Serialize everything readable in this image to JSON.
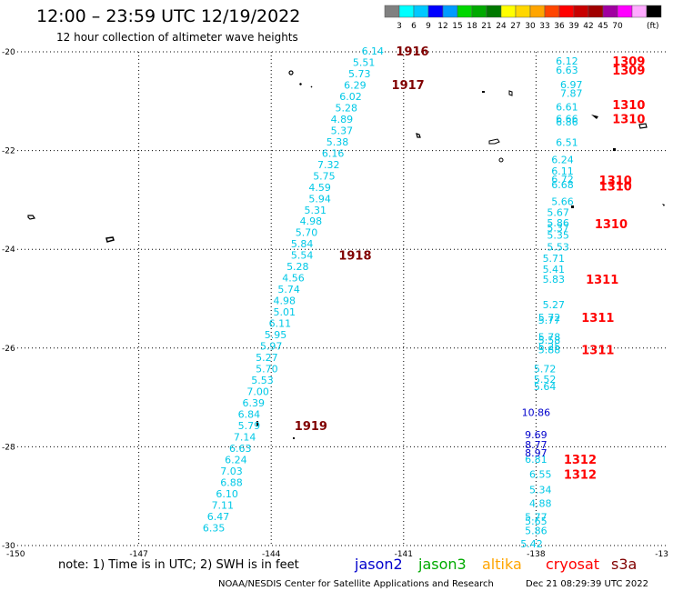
{
  "header": {
    "title": "12:00 – 23:59 UTC 12/19/2022",
    "subtitle": "12 hour collection of altimeter wave heights"
  },
  "colorbar": {
    "colors": [
      "#808080",
      "#00ffff",
      "#00c8ff",
      "#0000ff",
      "#009bff",
      "#00d700",
      "#00aa00",
      "#007800",
      "#ffff00",
      "#ffd700",
      "#ffa500",
      "#ff4500",
      "#ff0000",
      "#c80000",
      "#a00000",
      "#a000a0",
      "#ff00ff",
      "#ffaaff",
      "#000000"
    ],
    "ticks": [
      "3",
      "6",
      "9",
      "12",
      "15",
      "18",
      "21",
      "24",
      "27",
      "30",
      "33",
      "36",
      "39",
      "42",
      "45",
      "70"
    ],
    "unit": "(ft)"
  },
  "footer": {
    "note": "note:  1) Time is in UTC;  2) SWH is in feet",
    "legend": [
      {
        "label": "jason2",
        "color": "#0000cc"
      },
      {
        "label": "jason3",
        "color": "#00aa00"
      },
      {
        "label": "altika",
        "color": "#ffa500"
      },
      {
        "label": "cryosat",
        "color": "#ff0000"
      },
      {
        "label": "s3a",
        "color": "#800000"
      }
    ],
    "credit": "NOAA/NESDIS Center for Satellite Applications and Research",
    "timestamp": "Dec 21 08:29:39 UTC 2022"
  },
  "chart_data": {
    "type": "scatter",
    "xlim": [
      -150,
      -135
    ],
    "ylim": [
      -30,
      -20
    ],
    "x_ticks": [
      "-150",
      "-147",
      "-144",
      "-141",
      "-138",
      "-13"
    ],
    "y_ticks": [
      "-20",
      "-22",
      "-24",
      "-26",
      "-28",
      "-30"
    ],
    "grid": true,
    "series": [
      {
        "satellite": "s3a",
        "color": "#00c8e6",
        "points": [
          {
            "lon": -141.7,
            "lat": -19.98,
            "v": "6.14"
          },
          {
            "lon": -141.9,
            "lat": -20.21,
            "v": "5.51"
          },
          {
            "lon": -142.0,
            "lat": -20.44,
            "v": "5.73"
          },
          {
            "lon": -142.1,
            "lat": -20.67,
            "v": "6.29"
          },
          {
            "lon": -142.2,
            "lat": -20.9,
            "v": "6.02"
          },
          {
            "lon": -142.3,
            "lat": -21.13,
            "v": "5.28"
          },
          {
            "lon": -142.4,
            "lat": -21.36,
            "v": "4.89"
          },
          {
            "lon": -142.4,
            "lat": -21.59,
            "v": "5.37"
          },
          {
            "lon": -142.5,
            "lat": -21.82,
            "v": "5.38"
          },
          {
            "lon": -142.6,
            "lat": -22.05,
            "v": "6.16"
          },
          {
            "lon": -142.7,
            "lat": -22.28,
            "v": "7.32"
          },
          {
            "lon": -142.8,
            "lat": -22.51,
            "v": "5.75"
          },
          {
            "lon": -142.9,
            "lat": -22.74,
            "v": "4.59"
          },
          {
            "lon": -142.9,
            "lat": -22.97,
            "v": "5.94"
          },
          {
            "lon": -143.0,
            "lat": -23.2,
            "v": "5.31"
          },
          {
            "lon": -143.1,
            "lat": -23.43,
            "v": "4.98"
          },
          {
            "lon": -143.2,
            "lat": -23.66,
            "v": "5.70"
          },
          {
            "lon": -143.3,
            "lat": -23.89,
            "v": "5.84"
          },
          {
            "lon": -143.3,
            "lat": -24.12,
            "v": "5.54"
          },
          {
            "lon": -143.4,
            "lat": -24.35,
            "v": "5.28"
          },
          {
            "lon": -143.5,
            "lat": -24.58,
            "v": "4.56"
          },
          {
            "lon": -143.6,
            "lat": -24.81,
            "v": "5.74"
          },
          {
            "lon": -143.7,
            "lat": -25.04,
            "v": "4.98"
          },
          {
            "lon": -143.7,
            "lat": -25.27,
            "v": "5.01"
          },
          {
            "lon": -143.8,
            "lat": -25.5,
            "v": "6.11"
          },
          {
            "lon": -143.9,
            "lat": -25.73,
            "v": "5.95"
          },
          {
            "lon": -144.0,
            "lat": -25.96,
            "v": "5.97"
          },
          {
            "lon": -144.1,
            "lat": -26.19,
            "v": "5.27"
          },
          {
            "lon": -144.1,
            "lat": -26.42,
            "v": "5.70"
          },
          {
            "lon": -144.2,
            "lat": -26.65,
            "v": "5.53"
          },
          {
            "lon": -144.3,
            "lat": -26.88,
            "v": "7.00"
          },
          {
            "lon": -144.4,
            "lat": -27.11,
            "v": "6.39"
          },
          {
            "lon": -144.5,
            "lat": -27.34,
            "v": "6.84"
          },
          {
            "lon": -144.5,
            "lat": -27.57,
            "v": "5.79"
          },
          {
            "lon": -144.6,
            "lat": -27.8,
            "v": "7.14"
          },
          {
            "lon": -144.7,
            "lat": -28.03,
            "v": "6.63"
          },
          {
            "lon": -144.8,
            "lat": -28.26,
            "v": "6.24"
          },
          {
            "lon": -144.9,
            "lat": -28.49,
            "v": "7.03"
          },
          {
            "lon": -144.9,
            "lat": -28.72,
            "v": "6.88"
          },
          {
            "lon": -145.0,
            "lat": -28.95,
            "v": "6.10"
          },
          {
            "lon": -145.1,
            "lat": -29.18,
            "v": "7.11"
          },
          {
            "lon": -145.2,
            "lat": -29.41,
            "v": "6.47"
          },
          {
            "lon": -145.3,
            "lat": -29.64,
            "v": "6.35"
          }
        ]
      },
      {
        "satellite": "cryosat",
        "color": "#00c8e6",
        "points": [
          {
            "lon": -137.3,
            "lat": -20.18,
            "v": "6.12"
          },
          {
            "lon": -137.3,
            "lat": -20.37,
            "v": "6.63"
          },
          {
            "lon": -137.2,
            "lat": -20.66,
            "v": "6.97"
          },
          {
            "lon": -137.2,
            "lat": -20.84,
            "v": "7.87"
          },
          {
            "lon": -137.3,
            "lat": -21.11,
            "v": "6.61"
          },
          {
            "lon": -137.3,
            "lat": -21.35,
            "v": "6.66"
          },
          {
            "lon": -137.3,
            "lat": -21.42,
            "v": "6.86"
          },
          {
            "lon": -137.3,
            "lat": -21.83,
            "v": "6.51"
          },
          {
            "lon": -137.4,
            "lat": -22.18,
            "v": "6.24"
          },
          {
            "lon": -137.4,
            "lat": -22.41,
            "v": "6.11"
          },
          {
            "lon": -137.4,
            "lat": -22.58,
            "v": "6.72"
          },
          {
            "lon": -137.4,
            "lat": -22.69,
            "v": "6.68"
          },
          {
            "lon": -137.4,
            "lat": -23.03,
            "v": "5.66"
          },
          {
            "lon": -137.5,
            "lat": -23.25,
            "v": "5.67"
          },
          {
            "lon": -137.5,
            "lat": -23.46,
            "v": "5.86"
          },
          {
            "lon": -137.5,
            "lat": -23.56,
            "v": "5.37"
          },
          {
            "lon": -137.5,
            "lat": -23.71,
            "v": "5.35"
          },
          {
            "lon": -137.5,
            "lat": -23.95,
            "v": "5.53"
          },
          {
            "lon": -137.6,
            "lat": -24.18,
            "v": "5.71"
          },
          {
            "lon": -137.6,
            "lat": -24.4,
            "v": "5.41"
          },
          {
            "lon": -137.6,
            "lat": -24.6,
            "v": "5.83"
          },
          {
            "lon": -137.6,
            "lat": -25.12,
            "v": "5.27"
          },
          {
            "lon": -137.7,
            "lat": -25.38,
            "v": "5.72"
          },
          {
            "lon": -137.7,
            "lat": -25.43,
            "v": "5.77"
          },
          {
            "lon": -137.7,
            "lat": -25.77,
            "v": "5.78"
          },
          {
            "lon": -137.7,
            "lat": -25.84,
            "v": "5.58"
          },
          {
            "lon": -137.7,
            "lat": -25.97,
            "v": "5.25"
          },
          {
            "lon": -137.7,
            "lat": -26.03,
            "v": "5.88"
          },
          {
            "lon": -137.8,
            "lat": -26.42,
            "v": "5.72"
          },
          {
            "lon": -137.8,
            "lat": -26.63,
            "v": "5.52"
          },
          {
            "lon": -137.8,
            "lat": -26.78,
            "v": "5.64"
          },
          {
            "lon": -138.0,
            "lat": -28.25,
            "v": "6.81"
          },
          {
            "lon": -137.9,
            "lat": -28.55,
            "v": "6.55"
          },
          {
            "lon": -137.9,
            "lat": -28.87,
            "v": "5.34"
          },
          {
            "lon": -137.9,
            "lat": -29.14,
            "v": "4.88"
          },
          {
            "lon": -138.0,
            "lat": -29.42,
            "v": "5.77"
          },
          {
            "lon": -138.0,
            "lat": -29.5,
            "v": "5.65"
          },
          {
            "lon": -138.0,
            "lat": -29.7,
            "v": "5.86"
          },
          {
            "lon": -138.1,
            "lat": -29.96,
            "v": "5.42"
          }
        ]
      },
      {
        "satellite": "jason2",
        "color": "#0000cc",
        "points": [
          {
            "lon": -138.0,
            "lat": -27.3,
            "v": "10.86"
          },
          {
            "lon": -138.0,
            "lat": -27.75,
            "v": "9.69"
          },
          {
            "lon": -138.0,
            "lat": -27.96,
            "v": "8.77"
          },
          {
            "lon": -138.0,
            "lat": -28.12,
            "v": "8.97"
          }
        ]
      }
    ],
    "pass_labels": [
      {
        "text": "1916",
        "lon": -140.8,
        "lat": -19.98,
        "color": "#800000"
      },
      {
        "text": "1917",
        "lon": -140.9,
        "lat": -20.66,
        "color": "#800000"
      },
      {
        "text": "1918",
        "lon": -142.1,
        "lat": -24.12,
        "color": "#800000"
      },
      {
        "text": "1919",
        "lon": -143.1,
        "lat": -27.57,
        "color": "#800000"
      },
      {
        "text": "1309",
        "lon": -135.9,
        "lat": -20.18,
        "color": "#ff0000"
      },
      {
        "text": "1309",
        "lon": -135.9,
        "lat": -20.37,
        "color": "#ff0000"
      },
      {
        "text": "1310",
        "lon": -135.9,
        "lat": -21.07,
        "color": "#ff0000"
      },
      {
        "text": "1310",
        "lon": -135.9,
        "lat": -21.35,
        "color": "#ff0000"
      },
      {
        "text": "1310",
        "lon": -136.2,
        "lat": -22.6,
        "color": "#ff0000"
      },
      {
        "text": "1310",
        "lon": -136.2,
        "lat": -22.72,
        "color": "#ff0000"
      },
      {
        "text": "1310",
        "lon": -136.3,
        "lat": -23.48,
        "color": "#ff0000"
      },
      {
        "text": "1311",
        "lon": -136.5,
        "lat": -24.6,
        "color": "#ff0000"
      },
      {
        "text": "1311",
        "lon": -136.6,
        "lat": -25.38,
        "color": "#ff0000"
      },
      {
        "text": "1311",
        "lon": -136.6,
        "lat": -26.03,
        "color": "#ff0000"
      },
      {
        "text": "1312",
        "lon": -137.0,
        "lat": -28.25,
        "color": "#ff0000"
      },
      {
        "text": "1312",
        "lon": -137.0,
        "lat": -28.55,
        "color": "#ff0000"
      }
    ]
  }
}
